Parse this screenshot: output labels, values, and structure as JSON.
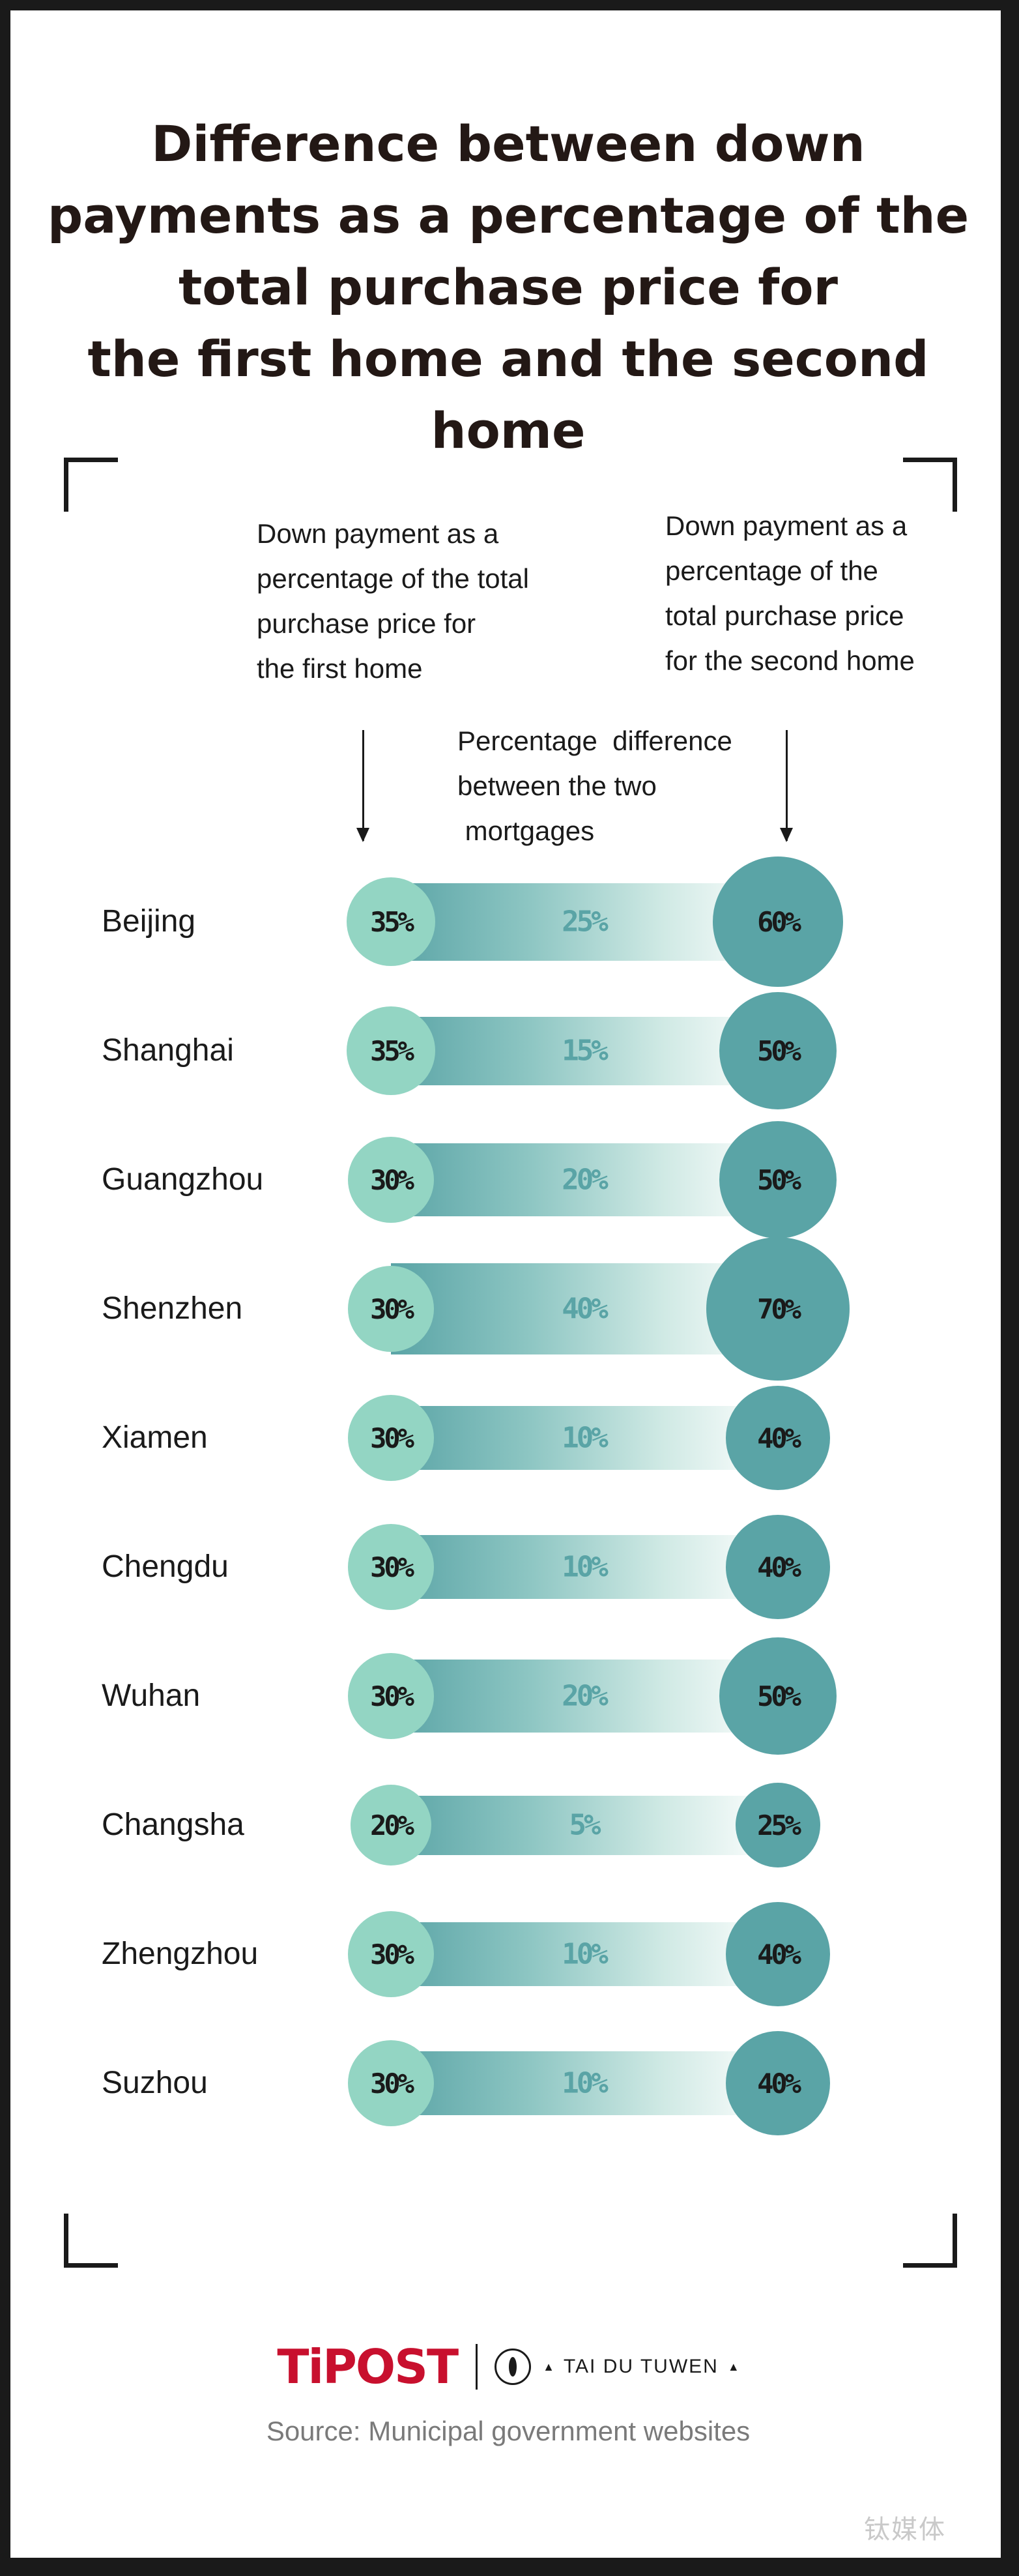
{
  "title": {
    "line1": "Difference between down",
    "line2": "payments as a percentage of the",
    "line3": "total purchase price for",
    "line4": "the first home and the second home"
  },
  "headers": {
    "first": [
      "Down payment as a",
      "percentage of the total",
      "purchase price for",
      "the first home"
    ],
    "second": [
      "Down payment as a",
      "percentage of the",
      "total purchase price",
      "for the second home"
    ],
    "diff": [
      "Percentage  difference",
      "between the two",
      " mortgages"
    ]
  },
  "colors": {
    "first_circle": "#93d5c3",
    "second_circle": "#5aa4a6",
    "difference_text": "#5aa4a6",
    "brand": "#c8102e"
  },
  "chart_data": {
    "type": "table",
    "title": "Difference between down payments as a percentage of the total purchase price for the first home and the second home",
    "columns": [
      "Down payment as a percentage of the total purchase price for the first home",
      "Percentage difference between the two mortgages",
      "Down payment as a percentage of the total purchase price for the second home"
    ],
    "categories": [
      "Beijing",
      "Shanghai",
      "Guangzhou",
      "Shenzhen",
      "Xiamen",
      "Chengdu",
      "Wuhan",
      "Changsha",
      "Zhengzhou",
      "Suzhou"
    ],
    "first_home": [
      35,
      35,
      30,
      30,
      30,
      30,
      30,
      20,
      30,
      30
    ],
    "second_home": [
      60,
      50,
      50,
      70,
      40,
      40,
      50,
      25,
      40,
      40
    ],
    "difference": [
      25,
      15,
      20,
      40,
      10,
      10,
      20,
      5,
      10,
      10
    ],
    "unit": "%"
  },
  "footer": {
    "brand": "TiPOST",
    "partner": "TAI DU TUWEN",
    "source": "Source: Municipal government websites",
    "watermark": "钛媒体"
  }
}
